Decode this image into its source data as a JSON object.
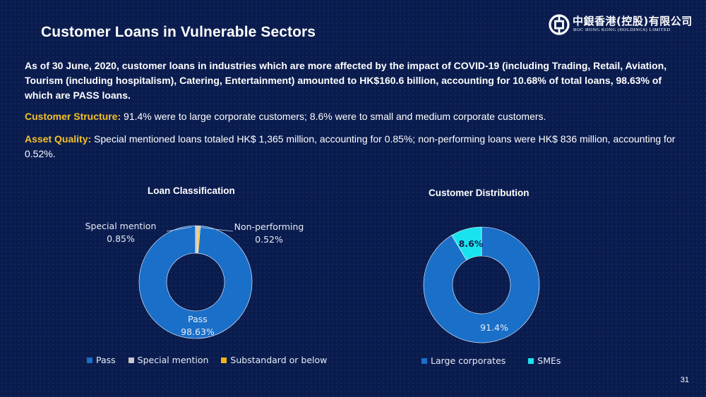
{
  "title": "Customer Loans in Vulnerable Sectors",
  "logo": {
    "name_cn": "中銀香港(控股)有限公司",
    "name_en": "BOC HONG KONG (HOLDINGS) LIMITED"
  },
  "intro": "As of 30 June, 2020, customer loans in industries which are more affected by the impact of COVID-19 (including Trading, Retail, Aviation, Tourism (including hospitalism), Catering, Entertainment) amounted to HK$160.6 billion, accounting for 10.68% of total loans, 98.63% of which are PASS loans.",
  "structure": {
    "label": "Customer Structure:",
    "text": " 91.4% were to large corporate customers; 8.6% were to small and medium corporate customers."
  },
  "quality": {
    "label": "Asset Quality:",
    "text": " Special mentioned loans totaled HK$ 1,365 million, accounting for 0.85%; non-performing loans were HK$ 836 million, accounting for 0.52%."
  },
  "page_number": "31",
  "colors": {
    "background": "#0a1c4e",
    "blue": "#1a6fc9",
    "grey": "#c8c8c8",
    "gold": "#f0b416",
    "cyan": "#19e3ee",
    "highlight": "#f5c02a"
  },
  "chart_data": [
    {
      "type": "pie",
      "variant": "donut",
      "title": "Loan Classification",
      "slices": [
        {
          "name": "Pass",
          "value": 98.63,
          "label": "98.63%",
          "color": "#1a6fc9"
        },
        {
          "name": "Special mention",
          "value": 0.85,
          "label": "0.85%",
          "color": "#c8c8c8"
        },
        {
          "name": "Substandard or below",
          "value": 0.52,
          "label": "0.52%",
          "color": "#f0b416"
        }
      ],
      "annotations": {
        "special_mention_name": "Special mention",
        "special_mention_value": "0.85%",
        "non_performing_name": "Non-performing",
        "non_performing_value": "0.52%",
        "pass_name": "Pass",
        "pass_value": "98.63%"
      },
      "legend": [
        "Pass",
        "Special mention",
        "Substandard or below"
      ],
      "legend_position": "bottom"
    },
    {
      "type": "pie",
      "variant": "donut",
      "title": "Customer Distribution",
      "slices": [
        {
          "name": "Large corporates",
          "value": 91.4,
          "label": "91.4%",
          "color": "#1a6fc9"
        },
        {
          "name": "SMEs",
          "value": 8.6,
          "label": "8.6%",
          "color": "#19e3ee"
        }
      ],
      "legend": [
        "Large corporates",
        "SMEs"
      ],
      "legend_position": "bottom"
    }
  ]
}
